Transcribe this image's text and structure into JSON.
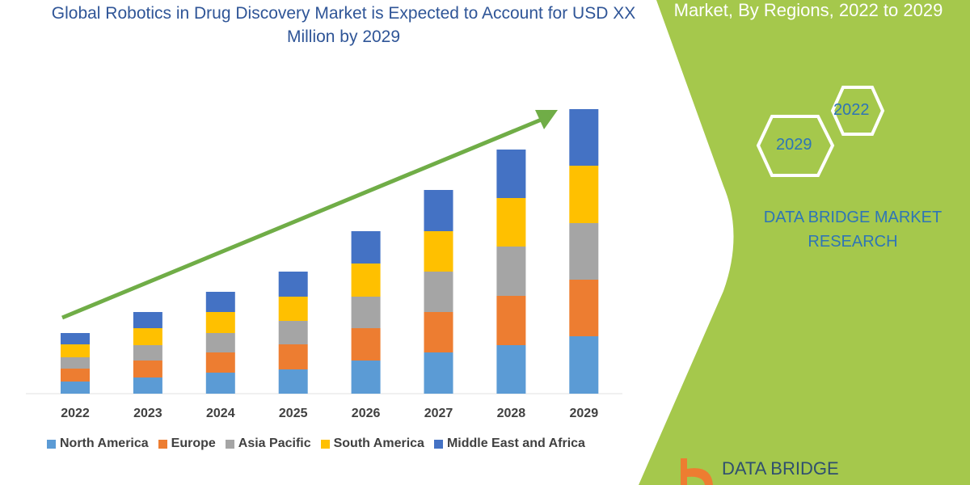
{
  "title": "Global Robotics in Drug Discovery Market is Expected to Account for USD XX Million by 2029",
  "side_panel": {
    "title": "Market, By Regions, 2022 to 2029",
    "hex_labels": [
      "2022",
      "2029"
    ],
    "brand": "DATA BRIDGE MARKET RESEARCH",
    "logo_text": "DATA BRIDGE",
    "panel_color": "#a5c84c"
  },
  "chart_data": {
    "type": "bar",
    "stacked": true,
    "title": "",
    "xlabel": "",
    "ylabel": "",
    "grid": false,
    "legend_position": "bottom",
    "categories": [
      "2022",
      "2023",
      "2024",
      "2025",
      "2026",
      "2027",
      "2028",
      "2029"
    ],
    "series": [
      {
        "name": "North America",
        "color": "#5b9bd5",
        "values": [
          15,
          20,
          26,
          30,
          41,
          51,
          60,
          71
        ]
      },
      {
        "name": "Europe",
        "color": "#ed7d31",
        "values": [
          16,
          21,
          25,
          31,
          40,
          50,
          61,
          70
        ]
      },
      {
        "name": "Asia Pacific",
        "color": "#a5a5a5",
        "values": [
          14,
          19,
          24,
          29,
          39,
          50,
          61,
          70
        ]
      },
      {
        "name": "South America",
        "color": "#ffc000",
        "values": [
          16,
          21,
          26,
          30,
          41,
          50,
          60,
          71
        ]
      },
      {
        "name": "Middle East and Africa",
        "color": "#4472c4",
        "values": [
          14,
          20,
          25,
          31,
          40,
          51,
          60,
          70
        ]
      }
    ],
    "trend_arrow_color": "#70ad47"
  }
}
